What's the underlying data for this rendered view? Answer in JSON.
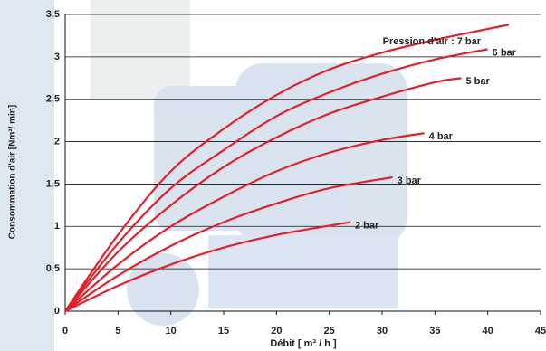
{
  "chart_data": {
    "type": "line",
    "xlabel": "Débit [ m³ / h ]",
    "ylabel": "Consommation d'air [Nm³/ min]",
    "xlim": [
      0,
      45
    ],
    "xticks": [
      0,
      5,
      10,
      15,
      20,
      25,
      30,
      35,
      40,
      45
    ],
    "ylim": [
      0,
      3.5
    ],
    "yticks": [
      0,
      {
        "value": 0.5,
        "label": "0,5"
      },
      1,
      {
        "value": 1.5,
        "label": "1,5"
      },
      2,
      {
        "value": 2.5,
        "label": "2,5"
      },
      3,
      {
        "value": 3.5,
        "label": "3,5"
      }
    ],
    "grid": true,
    "series": [
      {
        "name": "Pression d'air : 7 bar",
        "color": "#e3202b",
        "x": [
          0,
          5,
          10,
          15,
          20,
          25,
          30,
          35,
          42
        ],
        "values": [
          0,
          0.9,
          1.65,
          2.15,
          2.55,
          2.85,
          3.05,
          3.2,
          3.38
        ]
      },
      {
        "name": "6 bar",
        "color": "#e3202b",
        "x": [
          0,
          5,
          10,
          15,
          20,
          25,
          30,
          35,
          40
        ],
        "values": [
          0,
          0.8,
          1.45,
          1.9,
          2.3,
          2.58,
          2.8,
          2.97,
          3.09
        ]
      },
      {
        "name": "5 bar",
        "color": "#e3202b",
        "x": [
          0,
          5,
          10,
          15,
          20,
          25,
          30,
          35,
          37.5
        ],
        "values": [
          0,
          0.7,
          1.25,
          1.7,
          2.05,
          2.33,
          2.53,
          2.7,
          2.75
        ]
      },
      {
        "name": "4 bar",
        "color": "#e3202b",
        "x": [
          0,
          5,
          10,
          15,
          20,
          25,
          30,
          34
        ],
        "values": [
          0,
          0.55,
          1.0,
          1.35,
          1.65,
          1.87,
          2.02,
          2.1
        ]
      },
      {
        "name": "3 bar",
        "color": "#e3202b",
        "x": [
          0,
          5,
          10,
          15,
          20,
          25,
          31
        ],
        "values": [
          0,
          0.42,
          0.77,
          1.05,
          1.27,
          1.45,
          1.58
        ]
      },
      {
        "name": "2 bar",
        "color": "#e3202b",
        "x": [
          0,
          5,
          10,
          15,
          20,
          27
        ],
        "values": [
          0,
          0.3,
          0.55,
          0.75,
          0.9,
          1.05
        ]
      }
    ]
  }
}
